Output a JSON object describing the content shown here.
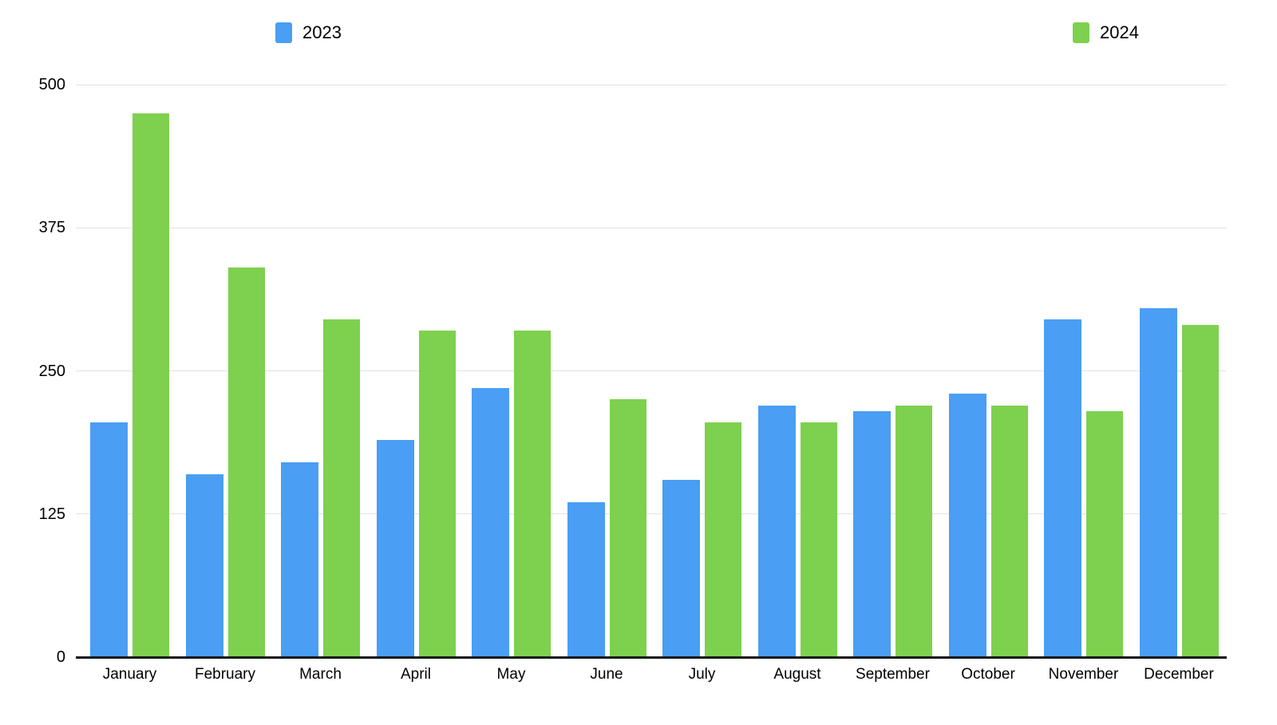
{
  "chart_data": {
    "type": "bar",
    "title": "",
    "categories": [
      "January",
      "February",
      "March",
      "April",
      "May",
      "June",
      "July",
      "August",
      "September",
      "October",
      "November",
      "December"
    ],
    "series": [
      {
        "name": "2023",
        "color": "#4A9EF3",
        "values": [
          205,
          160,
          170,
          190,
          235,
          135,
          155,
          220,
          215,
          230,
          295,
          305
        ]
      },
      {
        "name": "2024",
        "color": "#7ED04F",
        "values": [
          475,
          340,
          295,
          285,
          285,
          225,
          205,
          205,
          220,
          220,
          215,
          290
        ]
      }
    ],
    "xlabel": "",
    "ylabel": "",
    "ylim": [
      0,
      500
    ],
    "yticks": [
      0,
      125,
      250,
      375,
      500
    ],
    "grid": true,
    "legend_position": "top"
  },
  "colors": {
    "grid": "#E2E2E2",
    "axis": "#151515",
    "text": "#000000",
    "background": "#FFFFFF"
  }
}
